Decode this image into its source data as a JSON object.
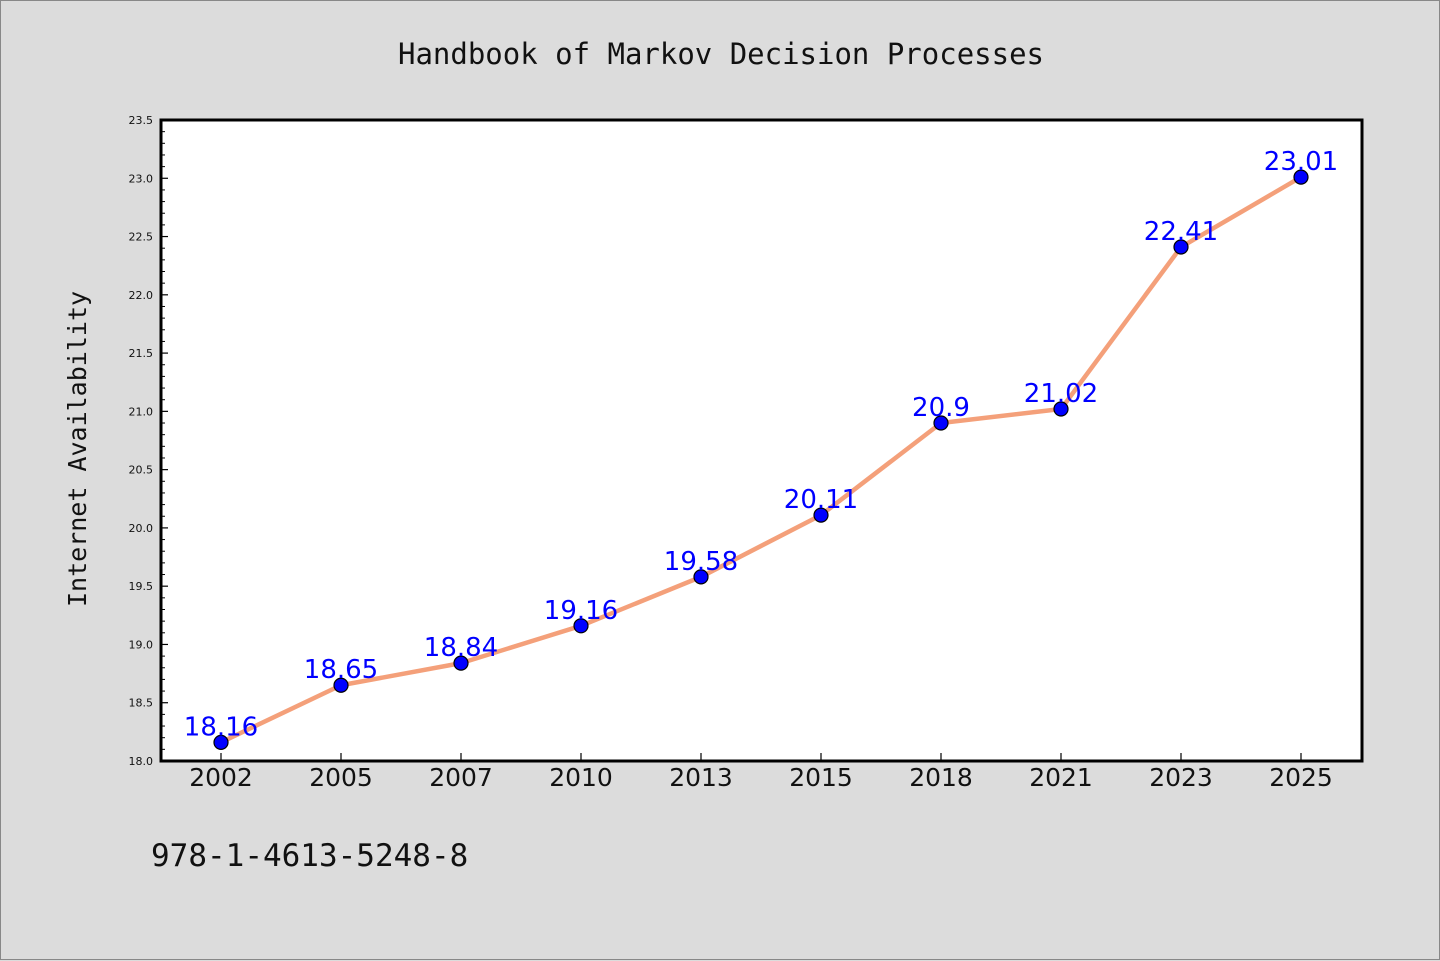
{
  "chart_data": {
    "type": "line",
    "title": "Handbook of Markov Decision Processes",
    "xlabel": "",
    "ylabel": "Internet Availability",
    "categories": [
      "2002",
      "2005",
      "2007",
      "2010",
      "2013",
      "2015",
      "2018",
      "2021",
      "2023",
      "2025"
    ],
    "series": [
      {
        "values": [
          18.16,
          18.65,
          18.84,
          19.16,
          19.58,
          20.11,
          20.9,
          21.02,
          22.41,
          23.01
        ],
        "labels": [
          "18.16",
          "18.65",
          "18.84",
          "19.16",
          "19.58",
          "20.11",
          "20.9",
          "21.02",
          "22.41",
          "23.01"
        ],
        "line_color": "#f4a07a",
        "marker_color": "#0000ff"
      }
    ],
    "ylim": [
      18.0,
      23.5
    ],
    "yticks": [
      "18.0",
      "18.5",
      "19.0",
      "19.5",
      "20.0",
      "20.5",
      "21.0",
      "21.5",
      "22.0",
      "22.5",
      "23.0",
      "23.5"
    ],
    "grid": false,
    "background_color": "#dcdcdc",
    "plot_background": "#ffffff"
  },
  "footer": {
    "isbn": "978-1-4613-5248-8"
  }
}
